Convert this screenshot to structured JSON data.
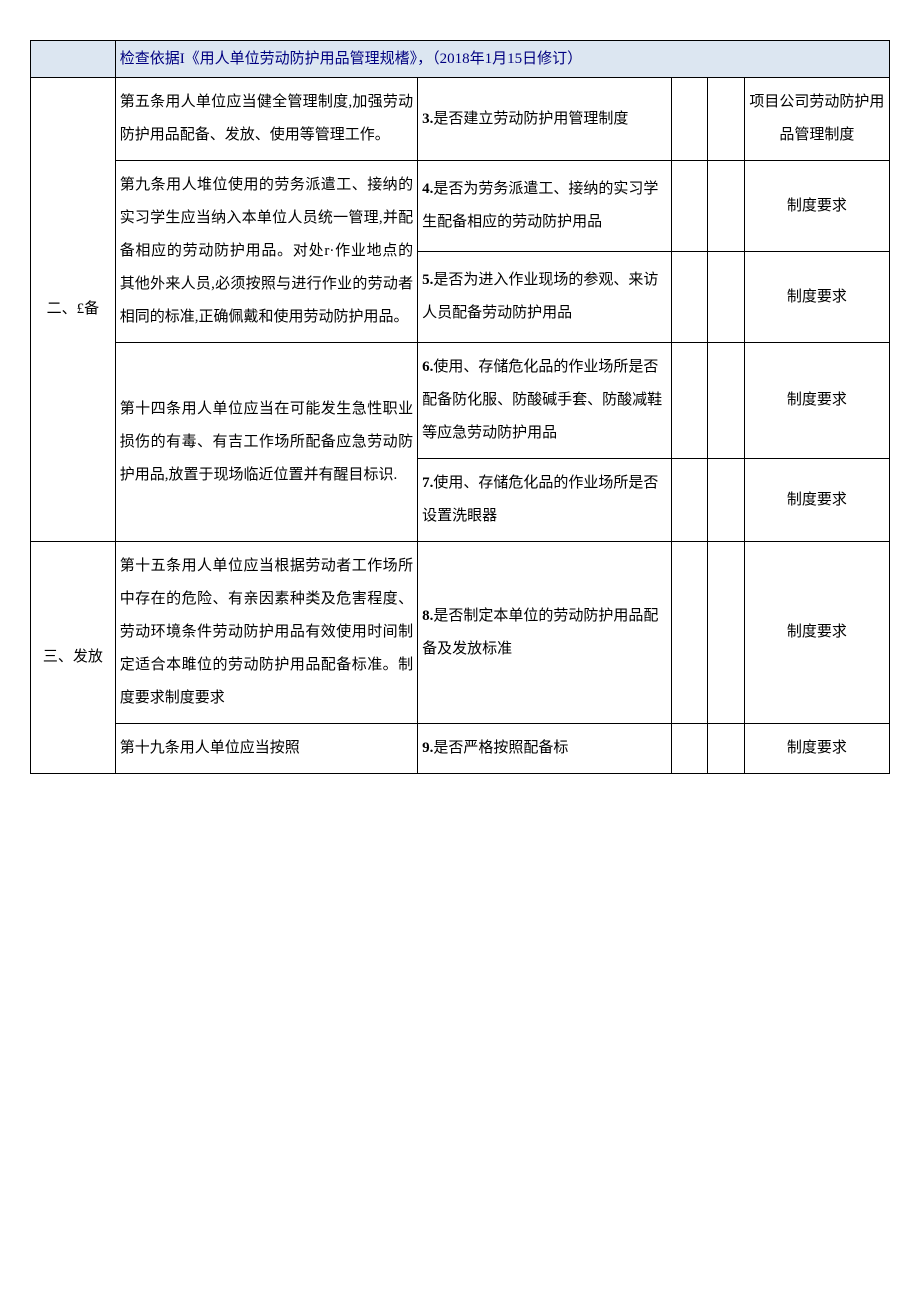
{
  "header": {
    "basis_label": "检查依据I《用人单位劳动防护用品管理规榰》，（2018年1月15日修订）"
  },
  "rows": [
    {
      "category": "二、£备",
      "basis": "第五条用人单位应当健全管理制度,加强劳动防护用品配备、发放、使用等管理工作。",
      "check": "3.是否建立劳动防护用管理制度",
      "remark": "项目公司劳动防护用品管理制度"
    },
    {
      "basis": "第九条用人堆位使用的劳务派遣工、接纳的实习学生应当纳入本单位人员统一管理,并配备相应的劳动防护用品。对处r·作业地点的其他外来人员,必须按照与进行作业的劳动者相同的标准,正确佩戴和使用劳动防护用品。",
      "check4": "4.是否为劳务派遣工、接纳的实习学生配备相应的劳动防护用品",
      "remark4": "制度要求",
      "check5": "5.是否为进入作业现场的参观、来访人员配备劳动防护用品",
      "remark5": "制度要求"
    },
    {
      "basis": "第十四条用人单位应当在可能发生急性职业损伤的有毒、有吉工作场所配备应急劳动防护用品,放置于现场临近位置并有醒目标识.",
      "check6": "6.使用、存储危化品的作业场所是否配备防化服、防酸碱手套、防酸减鞋等应急劳动防护用品",
      "remark6": "制度要求",
      "check7": "7.使用、存储危化品的作业场所是否设置洗眼器",
      "remark7": "制度要求"
    },
    {
      "category": "三、发放",
      "basis": "第十五条用人单位应当根据劳动者工作场所中存在的危险、有亲因素种类及危害程度、劳动环境条件劳动防护用品有效使用时间制定适合本雎位的劳动防护用品配备标准。制度要求制度要求",
      "check": "8.是否制定本单位的劳动防护用品配备及发放标准",
      "remark": "制度要求"
    },
    {
      "basis": "第十九条用人单位应当按照",
      "check": "9.是否严格按照配备标",
      "remark": "制度要求"
    }
  ]
}
